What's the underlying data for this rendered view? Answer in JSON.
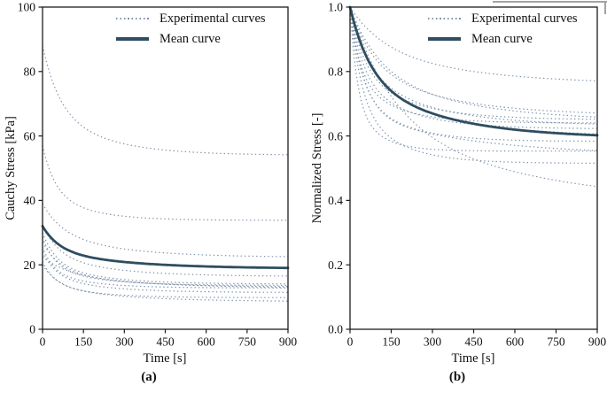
{
  "figure": {
    "caption_a": "(a)",
    "caption_b": "(b)"
  },
  "legend": {
    "experimental_label": "Experimental curves",
    "mean_label": "Mean curve"
  },
  "colors": {
    "mean_curve": "#2e4d60",
    "experimental_curve": "#7e92aa",
    "axis": "#1c1c1c",
    "text": "#111111",
    "background": "#ffffff",
    "page_edge_artifact": "#a2a2a2"
  },
  "chart_data": [
    {
      "id": "a",
      "type": "line",
      "title": "",
      "xlabel": "Time [s]",
      "ylabel": "Cauchy Stress [kPa]",
      "xlim": [
        0,
        900
      ],
      "ylim": [
        0,
        100
      ],
      "xticks": [
        0,
        150,
        300,
        450,
        600,
        750,
        900
      ],
      "xtick_labels": [
        "0",
        "150",
        "300",
        "450",
        "600",
        "750",
        "900"
      ],
      "yticks": [
        0,
        20,
        40,
        60,
        80,
        100
      ],
      "ytick_labels": [
        "0",
        "20",
        "40",
        "60",
        "80",
        "100"
      ],
      "grid": false,
      "legend_position": "upper right inside",
      "series": [
        {
          "name": "experimental-a-01",
          "role": "experimental",
          "style": "dotted",
          "y_start": 88.0,
          "y_end": 54.0,
          "model": {
            "tau_fast": 60,
            "tau_slow": 200,
            "w_fast": 0.55
          }
        },
        {
          "name": "experimental-a-02",
          "role": "experimental",
          "style": "dotted",
          "y_start": 57.0,
          "y_end": 33.8,
          "model": {
            "tau_fast": 45,
            "tau_slow": 150,
            "w_fast": 0.6
          }
        },
        {
          "name": "experimental-a-03",
          "role": "experimental",
          "style": "dotted",
          "y_start": 39.0,
          "y_end": 22.3,
          "model": {
            "tau_fast": 70,
            "tau_slow": 250,
            "w_fast": 0.5
          }
        },
        {
          "name": "experimental-a-04",
          "role": "experimental",
          "style": "dotted",
          "y_start": 32.5,
          "y_end": 16.4,
          "model": {
            "tau_fast": 55,
            "tau_slow": 220,
            "w_fast": 0.55
          }
        },
        {
          "name": "experimental-a-05",
          "role": "experimental",
          "style": "dotted",
          "y_start": 30.0,
          "y_end": 14.0,
          "model": {
            "tau_fast": 50,
            "tau_slow": 200,
            "w_fast": 0.6
          }
        },
        {
          "name": "experimental-a-06",
          "role": "experimental",
          "style": "dotted",
          "y_start": 28.5,
          "y_end": 13.6,
          "model": {
            "tau_fast": 45,
            "tau_slow": 180,
            "w_fast": 0.6
          }
        },
        {
          "name": "experimental-a-07",
          "role": "experimental",
          "style": "dotted",
          "y_start": 27.0,
          "y_end": 13.2,
          "model": {
            "tau_fast": 60,
            "tau_slow": 220,
            "w_fast": 0.55
          }
        },
        {
          "name": "experimental-a-08",
          "role": "experimental",
          "style": "dotted",
          "y_start": 25.5,
          "y_end": 12.8,
          "model": {
            "tau_fast": 40,
            "tau_slow": 160,
            "w_fast": 0.6
          }
        },
        {
          "name": "experimental-a-09",
          "role": "experimental",
          "style": "dotted",
          "y_start": 24.0,
          "y_end": 11.4,
          "model": {
            "tau_fast": 50,
            "tau_slow": 200,
            "w_fast": 0.6
          }
        },
        {
          "name": "experimental-a-10",
          "role": "experimental",
          "style": "dotted",
          "y_start": 22.5,
          "y_end": 12.6,
          "model": {
            "tau_fast": 90,
            "tau_slow": 350,
            "w_fast": 0.5
          }
        },
        {
          "name": "experimental-a-11",
          "role": "experimental",
          "style": "dotted",
          "y_start": 21.0,
          "y_end": 9.8,
          "model": {
            "tau_fast": 45,
            "tau_slow": 170,
            "w_fast": 0.6
          }
        },
        {
          "name": "experimental-a-12",
          "role": "experimental",
          "style": "dotted",
          "y_start": 20.0,
          "y_end": 8.6,
          "model": {
            "tau_fast": 55,
            "tau_slow": 260,
            "w_fast": 0.55
          }
        },
        {
          "name": "mean-a",
          "role": "mean",
          "style": "solid",
          "y_start": 32.0,
          "y_end": 18.8,
          "model": {
            "tau_fast": 60,
            "tau_slow": 280,
            "w_fast": 0.55
          }
        }
      ]
    },
    {
      "id": "b",
      "type": "line",
      "title": "",
      "xlabel": "Time [s]",
      "ylabel": "Normalized Stress [-]",
      "xlim": [
        0,
        900
      ],
      "ylim": [
        0,
        1
      ],
      "xticks": [
        0,
        150,
        300,
        450,
        600,
        750,
        900
      ],
      "xtick_labels": [
        "0",
        "150",
        "300",
        "450",
        "600",
        "750",
        "900"
      ],
      "yticks": [
        0,
        0.2,
        0.4,
        0.6,
        0.8,
        1.0
      ],
      "ytick_labels": [
        "0.0",
        "0.2",
        "0.4",
        "0.6",
        "0.8",
        "1.0"
      ],
      "grid": false,
      "legend_position": "upper right inside",
      "series": [
        {
          "name": "experimental-b-01",
          "role": "experimental",
          "style": "dotted",
          "y_start": 1.0,
          "y_end": 0.758,
          "model": {
            "tau_fast": 120,
            "tau_slow": 400,
            "w_fast": 0.5
          }
        },
        {
          "name": "experimental-b-02",
          "role": "experimental",
          "style": "dotted",
          "y_start": 1.0,
          "y_end": 0.663,
          "model": {
            "tau_fast": 80,
            "tau_slow": 300,
            "w_fast": 0.5
          }
        },
        {
          "name": "experimental-b-03",
          "role": "experimental",
          "style": "dotted",
          "y_start": 1.0,
          "y_end": 0.65,
          "model": {
            "tau_fast": 50,
            "tau_slow": 200,
            "w_fast": 0.55
          }
        },
        {
          "name": "experimental-b-04",
          "role": "experimental",
          "style": "dotted",
          "y_start": 1.0,
          "y_end": 0.645,
          "model": {
            "tau_fast": 100,
            "tau_slow": 350,
            "w_fast": 0.5
          }
        },
        {
          "name": "experimental-b-05",
          "role": "experimental",
          "style": "dotted",
          "y_start": 1.0,
          "y_end": 0.64,
          "model": {
            "tau_fast": 35,
            "tau_slow": 150,
            "w_fast": 0.6
          }
        },
        {
          "name": "experimental-b-06",
          "role": "experimental",
          "style": "dotted",
          "y_start": 1.0,
          "y_end": 0.632,
          "model": {
            "tau_fast": 60,
            "tau_slow": 250,
            "w_fast": 0.5
          }
        },
        {
          "name": "experimental-b-07",
          "role": "experimental",
          "style": "dotted",
          "y_start": 1.0,
          "y_end": 0.622,
          "model": {
            "tau_fast": 45,
            "tau_slow": 180,
            "w_fast": 0.55
          }
        },
        {
          "name": "experimental-b-08",
          "role": "experimental",
          "style": "dotted",
          "y_start": 1.0,
          "y_end": 0.598,
          "model": {
            "tau_fast": 70,
            "tau_slow": 280,
            "w_fast": 0.5
          }
        },
        {
          "name": "experimental-b-09",
          "role": "experimental",
          "style": "dotted",
          "y_start": 1.0,
          "y_end": 0.583,
          "model": {
            "tau_fast": 40,
            "tau_slow": 160,
            "w_fast": 0.6
          }
        },
        {
          "name": "experimental-b-10",
          "role": "experimental",
          "style": "dotted",
          "y_start": 1.0,
          "y_end": 0.553,
          "model": {
            "tau_fast": 25,
            "tau_slow": 90,
            "w_fast": 0.65
          }
        },
        {
          "name": "experimental-b-11",
          "role": "experimental",
          "style": "dotted",
          "y_start": 1.0,
          "y_end": 0.54,
          "model": {
            "tau_fast": 50,
            "tau_slow": 400,
            "w_fast": 0.7
          }
        },
        {
          "name": "experimental-b-12",
          "role": "experimental",
          "style": "dotted",
          "y_start": 1.0,
          "y_end": 0.515,
          "model": {
            "tau_fast": 40,
            "tau_slow": 150,
            "w_fast": 0.6
          }
        },
        {
          "name": "experimental-b-13",
          "role": "experimental",
          "style": "dotted",
          "y_start": 1.0,
          "y_end": 0.38,
          "model": {
            "tau_fast": 150,
            "tau_slow": 600,
            "w_fast": 0.55
          }
        },
        {
          "name": "mean-b",
          "role": "mean",
          "style": "solid",
          "y_start": 1.0,
          "y_end": 0.592,
          "model": {
            "tau_fast": 70,
            "tau_slow": 300,
            "w_fast": 0.5
          }
        }
      ]
    }
  ]
}
